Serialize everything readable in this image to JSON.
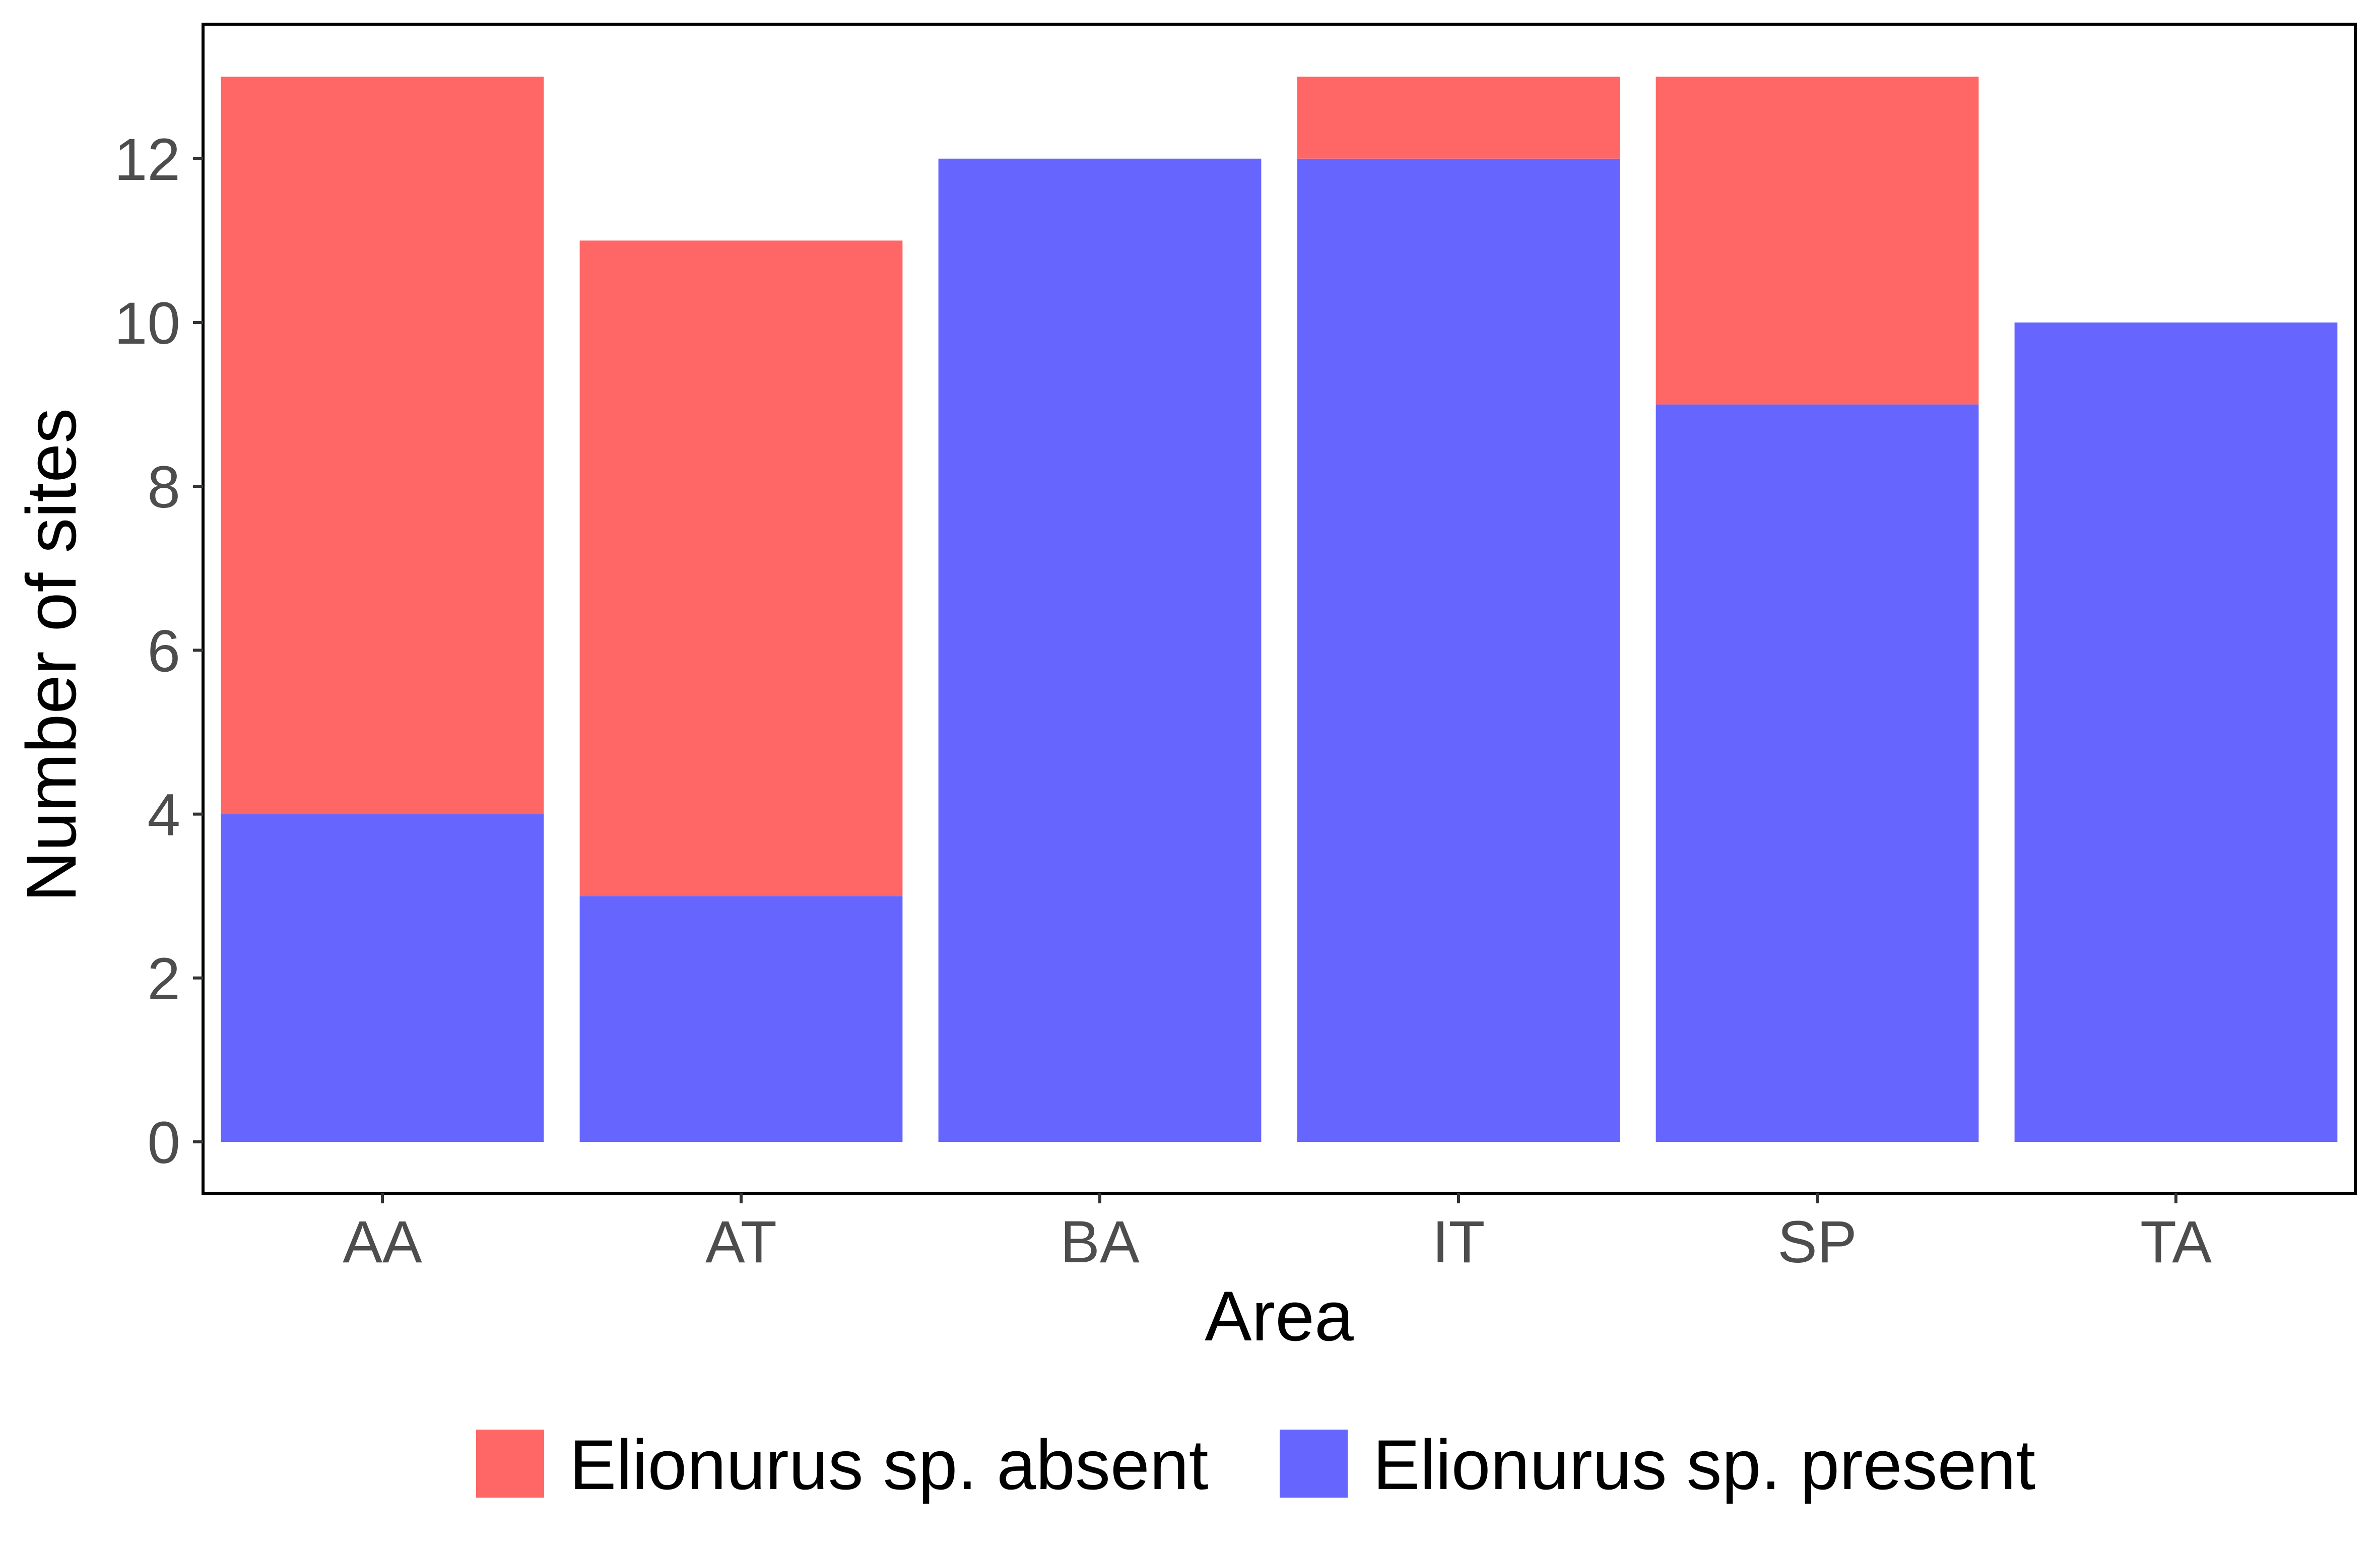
{
  "chart_data": {
    "type": "bar",
    "stacked": true,
    "title": "",
    "xlabel": "Area",
    "ylabel": "Number of sites",
    "categories": [
      "AA",
      "AT",
      "BA",
      "IT",
      "SP",
      "TA"
    ],
    "series": [
      {
        "name": "Elionurus sp. present",
        "color": "#6666ff",
        "values": [
          4,
          3,
          12,
          12,
          9,
          10
        ]
      },
      {
        "name": "Elionurus sp. absent",
        "color": "#ff6666",
        "values": [
          9,
          8,
          0,
          1,
          4,
          0
        ]
      }
    ],
    "ylim": [
      0,
      13
    ],
    "yticks": [
      "0",
      "2",
      "4",
      "6",
      "8",
      "10",
      "12"
    ],
    "grid": false,
    "legend": {
      "position": "bottom",
      "items": [
        {
          "label": "Elionurus sp. absent",
          "color": "#ff6666"
        },
        {
          "label": "Elionurus sp. present",
          "color": "#6666ff"
        }
      ]
    }
  }
}
